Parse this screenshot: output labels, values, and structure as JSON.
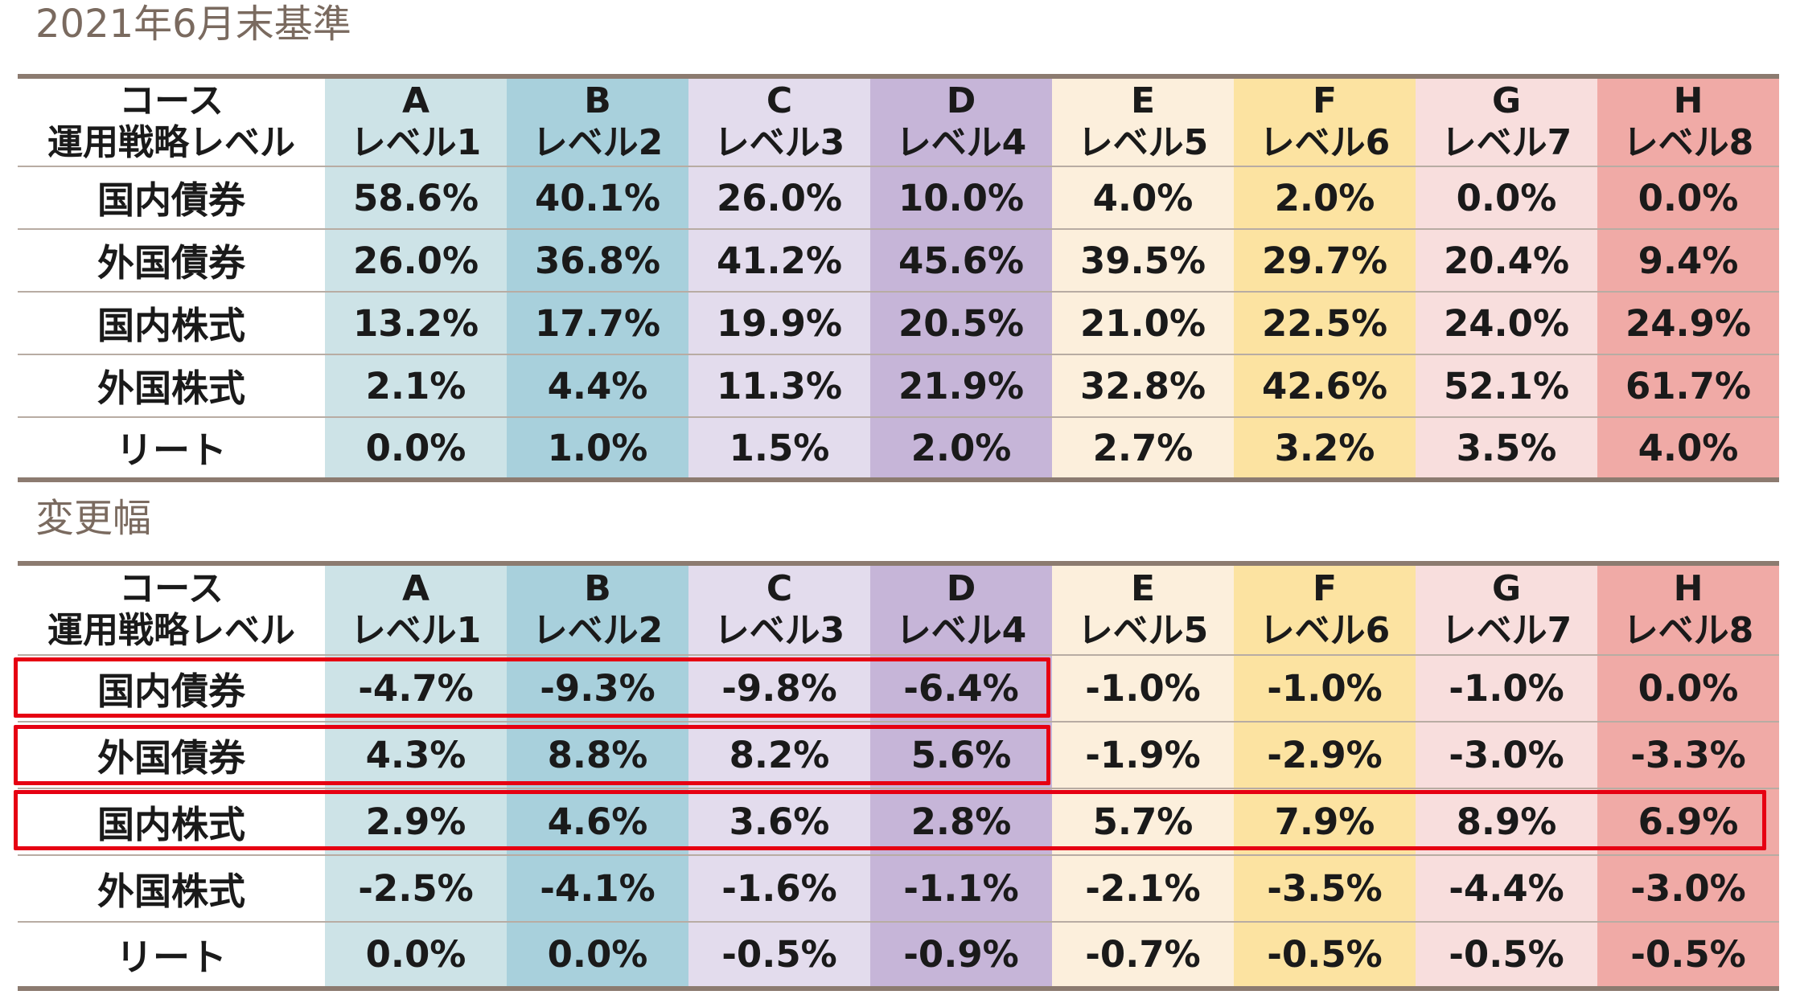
{
  "title_top": "2021年6月末基準",
  "title_bottom": "変更幅",
  "header": {
    "course_label": "コース",
    "level_label": "運用戦略レベル",
    "courses": [
      {
        "code": "A",
        "level": "レベル1",
        "color": "#cde3e7"
      },
      {
        "code": "B",
        "level": "レベル2",
        "color": "#a8d0dc"
      },
      {
        "code": "C",
        "level": "レベル3",
        "color": "#e3dced"
      },
      {
        "code": "D",
        "level": "レベル4",
        "color": "#c6b5d8"
      },
      {
        "code": "E",
        "level": "レベル5",
        "color": "#fcefdc"
      },
      {
        "code": "F",
        "level": "レベル6",
        "color": "#fce3a1"
      },
      {
        "code": "G",
        "level": "レベル7",
        "color": "#f8dedd"
      },
      {
        "code": "H",
        "level": "レベル8",
        "color": "#f0aaa6"
      }
    ]
  },
  "allocation": [
    {
      "asset": "国内債券",
      "values": [
        "58.6%",
        "40.1%",
        "26.0%",
        "10.0%",
        "4.0%",
        "2.0%",
        "0.0%",
        "0.0%"
      ]
    },
    {
      "asset": "外国債券",
      "values": [
        "26.0%",
        "36.8%",
        "41.2%",
        "45.6%",
        "39.5%",
        "29.7%",
        "20.4%",
        "9.4%"
      ]
    },
    {
      "asset": "国内株式",
      "values": [
        "13.2%",
        "17.7%",
        "19.9%",
        "20.5%",
        "21.0%",
        "22.5%",
        "24.0%",
        "24.9%"
      ]
    },
    {
      "asset": "外国株式",
      "values": [
        "2.1%",
        "4.4%",
        "11.3%",
        "21.9%",
        "32.8%",
        "42.6%",
        "52.1%",
        "61.7%"
      ]
    },
    {
      "asset": "リート",
      "values": [
        "0.0%",
        "1.0%",
        "1.5%",
        "2.0%",
        "2.7%",
        "3.2%",
        "3.5%",
        "4.0%"
      ]
    }
  ],
  "changes": [
    {
      "asset": "国内債券",
      "values": [
        "-4.7%",
        "-9.3%",
        "-9.8%",
        "-6.4%",
        "-1.0%",
        "-1.0%",
        "-1.0%",
        "0.0%"
      ]
    },
    {
      "asset": "外国債券",
      "values": [
        "4.3%",
        "8.8%",
        "8.2%",
        "5.6%",
        "-1.9%",
        "-2.9%",
        "-3.0%",
        "-3.3%"
      ]
    },
    {
      "asset": "国内株式",
      "values": [
        "2.9%",
        "4.6%",
        "3.6%",
        "2.8%",
        "5.7%",
        "7.9%",
        "8.9%",
        "6.9%"
      ]
    },
    {
      "asset": "外国株式",
      "values": [
        "-2.5%",
        "-4.1%",
        "-1.6%",
        "-1.1%",
        "-2.1%",
        "-3.5%",
        "-4.4%",
        "-3.0%"
      ]
    },
    {
      "asset": "リート",
      "values": [
        "0.0%",
        "0.0%",
        "-0.5%",
        "-0.9%",
        "-0.7%",
        "-0.5%",
        "-0.5%",
        "-0.5%"
      ]
    }
  ],
  "highlight_color": "#e60012",
  "rule_color": "#8c7b70"
}
